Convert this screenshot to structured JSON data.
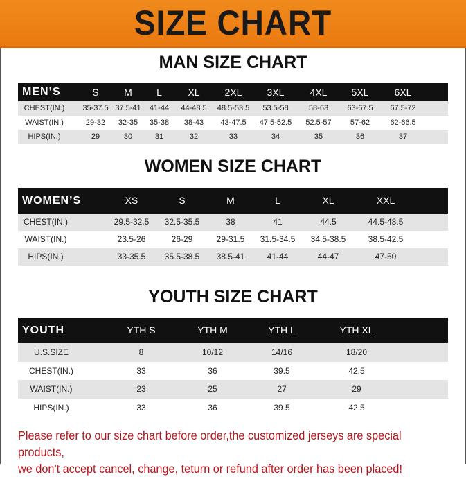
{
  "header": {
    "title": "SIZE CHART",
    "color": "#ee8318"
  },
  "tables": [
    {
      "title": "MAN SIZE CHART",
      "columns": [
        "MEN’S",
        "S",
        "M",
        "L",
        "XL",
        "2XL",
        "3XL",
        "4XL",
        "5XL",
        "6XL"
      ],
      "rows": [
        [
          "CHEST(IN.)",
          "35-37.5",
          "37.5-41",
          "41-44",
          "44-48.5",
          "48.5-53.5",
          "53.5-58",
          "58-63",
          "63-67.5",
          "67.5-72"
        ],
        [
          "WAIST(IN.)",
          "29-32",
          "32-35",
          "35-38",
          "38-43",
          "43-47.5",
          "47.5-52.5",
          "52.5-57",
          "57-62",
          "62-66.5"
        ],
        [
          "HIPS(IN.)",
          "29",
          "30",
          "31",
          "32",
          "33",
          "34",
          "35",
          "36",
          "37"
        ]
      ]
    },
    {
      "title": "WOMEN SIZE CHART",
      "columns": [
        "WOMEN’S",
        "XS",
        "S",
        "M",
        "L",
        "XL",
        "XXL"
      ],
      "rows": [
        [
          "CHEST(IN.)",
          "29.5-32.5",
          "32.5-35.5",
          "38",
          "41",
          "44.5",
          "44.5-48.5"
        ],
        [
          "WAIST(IN.)",
          "23.5-26",
          "26-29",
          "29-31.5",
          "31.5-34.5",
          "34.5-38.5",
          "38.5-42.5"
        ],
        [
          "HIPS(IN.)",
          "33-35.5",
          "35.5-38.5",
          "38.5-41",
          "41-44",
          "44-47",
          "47-50"
        ]
      ]
    },
    {
      "title": "YOUTH SIZE CHART",
      "columns": [
        "YOUTH",
        "YTH S",
        "YTH M",
        "YTH L",
        "YTH XL"
      ],
      "rows": [
        [
          "U.S.SIZE",
          "8",
          "10/12",
          "14/16",
          "18/20"
        ],
        [
          "CHEST(IN.)",
          "33",
          "36",
          "39.5",
          "42.5"
        ],
        [
          "WAIST(IN.)",
          "23",
          "25",
          "27",
          "29"
        ],
        [
          "HIPS(IN.)",
          "33",
          "36",
          "39.5",
          "42.5"
        ]
      ]
    }
  ],
  "notice": {
    "line1": "Please refer to our size chart before order,the customized jerseys are special products,",
    "line2": "we don't accept cancel, change, teturn or refund after order has been placed!",
    "color": "#b3161c"
  }
}
